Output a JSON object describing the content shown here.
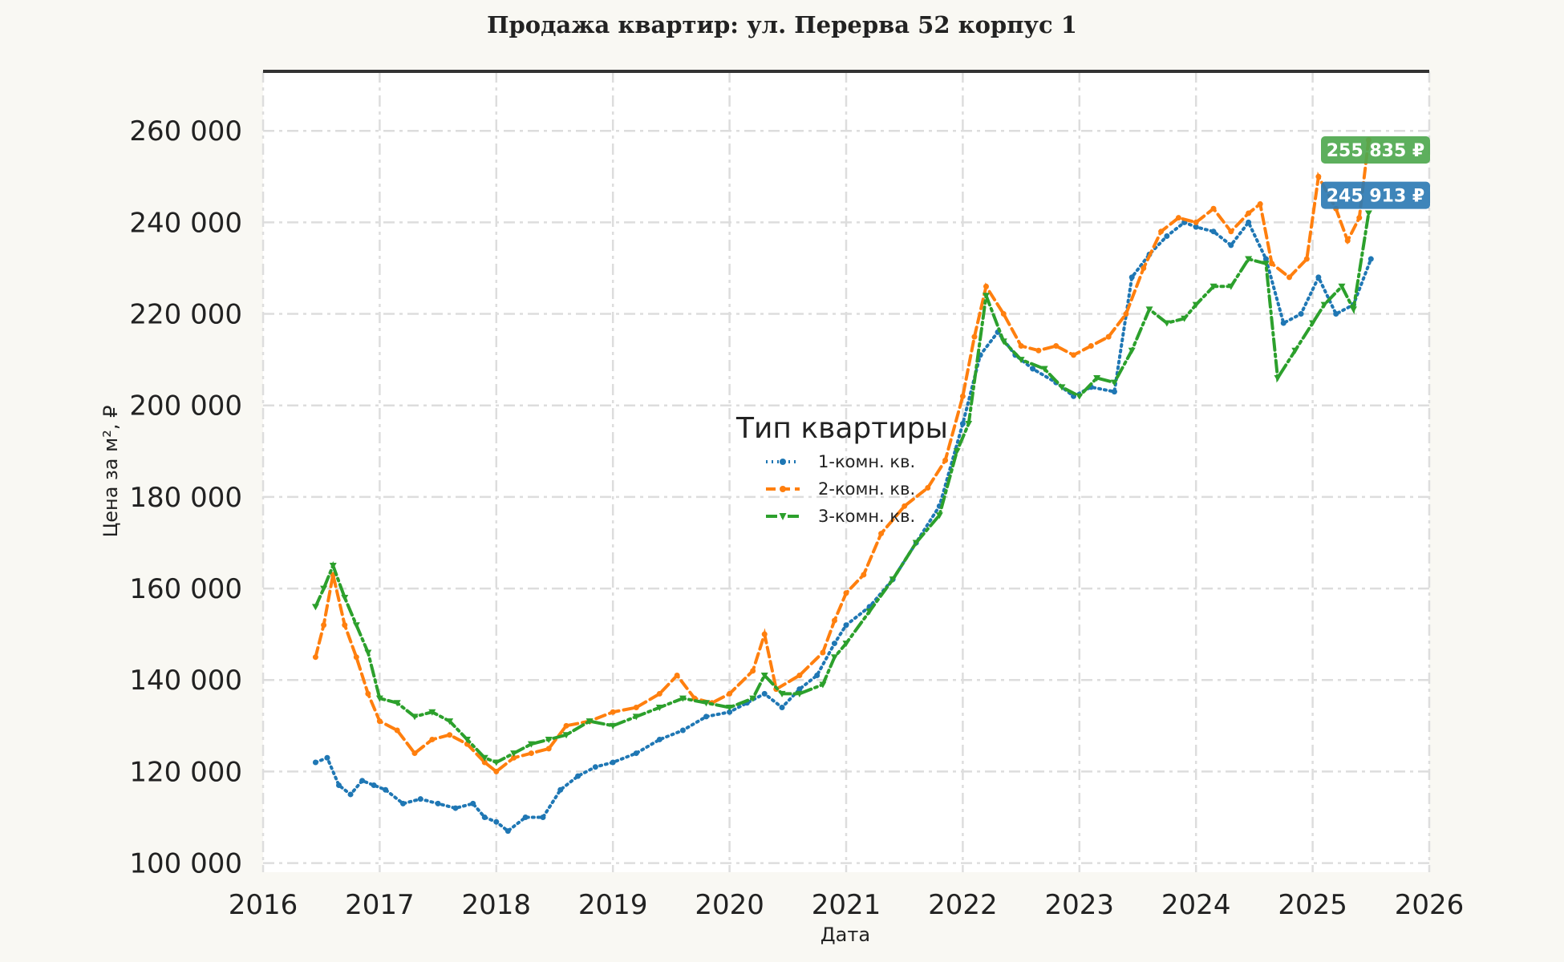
{
  "chart_data": {
    "type": "line",
    "title": "Продажа квартир: ул. Перерва 52 корпус 1",
    "xlabel": "Дата",
    "ylabel": "Цена за м², ₽",
    "xlim": [
      2016,
      2026
    ],
    "ylim": [
      98000,
      273000
    ],
    "x_ticks": [
      2016,
      2017,
      2018,
      2019,
      2020,
      2021,
      2022,
      2023,
      2024,
      2025,
      2026
    ],
    "x_tick_labels": [
      "2016",
      "2017",
      "2018",
      "2019",
      "2020",
      "2021",
      "2022",
      "2023",
      "2024",
      "2025",
      "2026"
    ],
    "y_ticks": [
      100000,
      120000,
      140000,
      160000,
      180000,
      200000,
      220000,
      240000,
      260000
    ],
    "y_tick_labels": [
      "100 000",
      "120 000",
      "140 000",
      "160 000",
      "180 000",
      "200 000",
      "220 000",
      "240 000",
      "260 000"
    ],
    "grid": true,
    "legend": {
      "title": "Тип квартиры",
      "position": "center"
    },
    "series": [
      {
        "name": "1-комн. кв.",
        "color": "#1f77b4",
        "style": "dotted",
        "marker": "circle",
        "x": [
          2016.45,
          2016.55,
          2016.65,
          2016.75,
          2016.85,
          2016.95,
          2017.05,
          2017.2,
          2017.35,
          2017.5,
          2017.65,
          2017.8,
          2017.9,
          2018.0,
          2018.1,
          2018.25,
          2018.4,
          2018.55,
          2018.7,
          2018.85,
          2019.0,
          2019.2,
          2019.4,
          2019.6,
          2019.8,
          2020.0,
          2020.15,
          2020.3,
          2020.45,
          2020.6,
          2020.75,
          2020.9,
          2021.0,
          2021.2,
          2021.4,
          2021.6,
          2021.8,
          2022.0,
          2022.15,
          2022.3,
          2022.45,
          2022.6,
          2022.8,
          2022.95,
          2023.1,
          2023.3,
          2023.45,
          2023.6,
          2023.75,
          2023.9,
          2024.0,
          2024.15,
          2024.3,
          2024.45,
          2024.6,
          2024.75,
          2024.9,
          2025.05,
          2025.2,
          2025.35,
          2025.5
        ],
        "y": [
          122000,
          123000,
          117000,
          115000,
          118000,
          117000,
          116000,
          113000,
          114000,
          113000,
          112000,
          113000,
          110000,
          109000,
          107000,
          110000,
          110000,
          116000,
          119000,
          121000,
          122000,
          124000,
          127000,
          129000,
          132000,
          133000,
          135000,
          137000,
          134000,
          138000,
          141000,
          148000,
          152000,
          156000,
          162000,
          170000,
          178000,
          196000,
          211000,
          216000,
          211000,
          208000,
          205000,
          202000,
          204000,
          203000,
          228000,
          233000,
          237000,
          240000,
          239000,
          238000,
          235000,
          240000,
          232000,
          218000,
          220000,
          228000,
          220000,
          222000,
          232000
        ]
      },
      {
        "name": "2-комн. кв.",
        "color": "#ff7f0e",
        "style": "dashed",
        "marker": "circle",
        "x": [
          2016.45,
          2016.52,
          2016.6,
          2016.7,
          2016.8,
          2016.9,
          2017.0,
          2017.15,
          2017.3,
          2017.45,
          2017.6,
          2017.75,
          2017.9,
          2018.0,
          2018.15,
          2018.3,
          2018.45,
          2018.6,
          2018.8,
          2019.0,
          2019.2,
          2019.4,
          2019.55,
          2019.7,
          2019.85,
          2020.0,
          2020.2,
          2020.3,
          2020.4,
          2020.6,
          2020.8,
          2020.9,
          2021.0,
          2021.15,
          2021.3,
          2021.5,
          2021.7,
          2021.85,
          2022.0,
          2022.1,
          2022.2,
          2022.35,
          2022.5,
          2022.65,
          2022.8,
          2022.95,
          2023.1,
          2023.25,
          2023.4,
          2023.55,
          2023.7,
          2023.85,
          2024.0,
          2024.15,
          2024.3,
          2024.45,
          2024.55,
          2024.65,
          2024.8,
          2024.95,
          2025.05,
          2025.2,
          2025.3,
          2025.4,
          2025.48
        ],
        "y": [
          145000,
          152000,
          163000,
          152000,
          145000,
          137000,
          131000,
          129000,
          124000,
          127000,
          128000,
          126000,
          122000,
          120000,
          123000,
          124000,
          125000,
          130000,
          131000,
          133000,
          134000,
          137000,
          141000,
          136000,
          135000,
          137000,
          142000,
          150000,
          138000,
          141000,
          146000,
          153000,
          159000,
          163000,
          172000,
          178000,
          182000,
          188000,
          202000,
          215000,
          226000,
          220000,
          213000,
          212000,
          213000,
          211000,
          213000,
          215000,
          220000,
          230000,
          238000,
          241000,
          240000,
          243000,
          238000,
          242000,
          244000,
          231000,
          228000,
          232000,
          250000,
          243000,
          236000,
          241000,
          258000
        ]
      },
      {
        "name": "3-комн. кв.",
        "color": "#2ca02c",
        "style": "dashdot",
        "marker": "triangle",
        "x": [
          2016.45,
          2016.52,
          2016.6,
          2016.7,
          2016.8,
          2016.9,
          2017.0,
          2017.15,
          2017.3,
          2017.45,
          2017.6,
          2017.75,
          2017.9,
          2018.0,
          2018.15,
          2018.3,
          2018.45,
          2018.6,
          2018.8,
          2019.0,
          2019.2,
          2019.4,
          2019.6,
          2019.8,
          2020.0,
          2020.2,
          2020.3,
          2020.45,
          2020.6,
          2020.8,
          2020.9,
          2021.0,
          2021.2,
          2021.4,
          2021.6,
          2021.8,
          2021.95,
          2022.05,
          2022.2,
          2022.35,
          2022.5,
          2022.7,
          2022.85,
          2023.0,
          2023.15,
          2023.3,
          2023.45,
          2023.6,
          2023.75,
          2023.9,
          2024.0,
          2024.15,
          2024.3,
          2024.45,
          2024.6,
          2024.7,
          2024.85,
          2025.0,
          2025.1,
          2025.25,
          2025.35,
          2025.48
        ],
        "y": [
          156000,
          160000,
          165000,
          158000,
          152000,
          146000,
          136000,
          135000,
          132000,
          133000,
          131000,
          127000,
          123000,
          122000,
          124000,
          126000,
          127000,
          128000,
          131000,
          130000,
          132000,
          134000,
          136000,
          135000,
          134000,
          136000,
          141000,
          137000,
          137000,
          139000,
          145000,
          148000,
          155000,
          162000,
          170000,
          176000,
          190000,
          196000,
          224000,
          214000,
          210000,
          208000,
          204000,
          202000,
          206000,
          205000,
          212000,
          221000,
          218000,
          219000,
          222000,
          226000,
          226000,
          232000,
          231000,
          206000,
          212000,
          218000,
          222000,
          226000,
          221000,
          242000
        ]
      }
    ],
    "badges": [
      {
        "series": "3-комн. кв.",
        "label": "255 835 ₽",
        "value": 255835,
        "color": "#4fa84f"
      },
      {
        "series": "1-комн. кв.",
        "label": "245 913 ₽",
        "value": 245913,
        "color": "#2e7bb4"
      }
    ]
  }
}
